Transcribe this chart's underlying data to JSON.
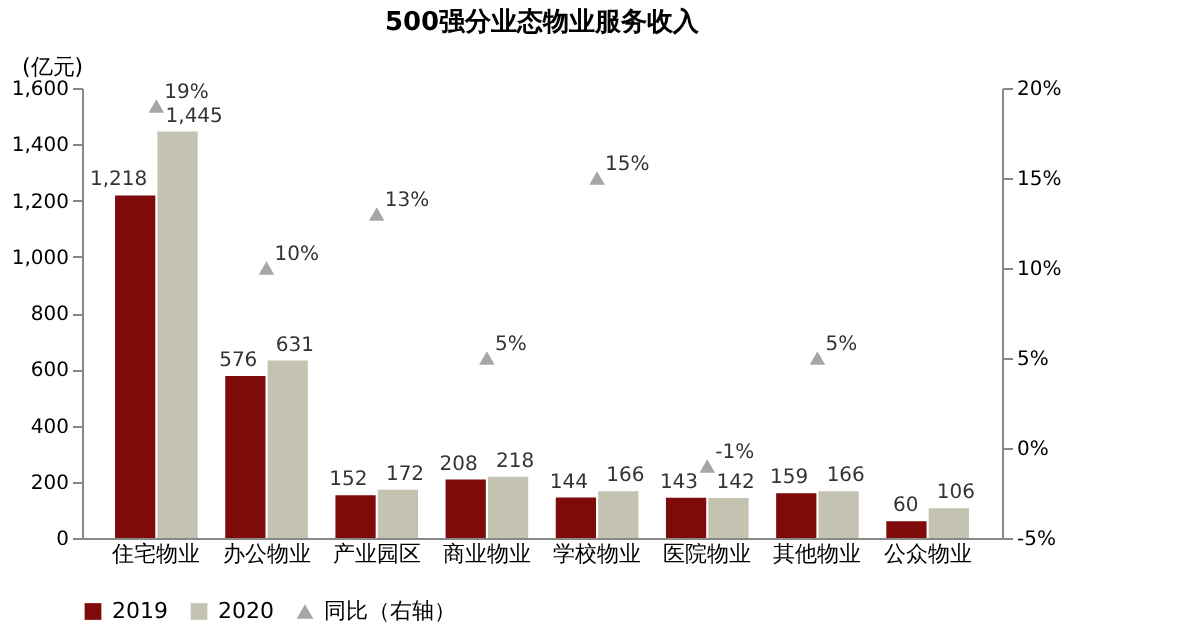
{
  "chart_data": {
    "type": "bar",
    "title": "500强分业态物业服务收入",
    "ylabel": "(亿元)",
    "categories": [
      "住宅物业",
      "办公物业",
      "产业园区",
      "商业物业",
      "学校物业",
      "医院物业",
      "其他物业",
      "公众物业"
    ],
    "series": [
      {
        "name": "2019",
        "color": "#7f0a0a",
        "values": [
          1218,
          576,
          152,
          208,
          144,
          143,
          159,
          60
        ],
        "value_labels": [
          "1,218",
          "576",
          "152",
          "208",
          "144",
          "143",
          "159",
          "60"
        ]
      },
      {
        "name": "2020",
        "color": "#c4c3b2",
        "values": [
          1445,
          631,
          172,
          218,
          166,
          142,
          166,
          106
        ],
        "value_labels": [
          "1,445",
          "631",
          "172",
          "218",
          "166",
          "142",
          "166",
          "106"
        ]
      },
      {
        "name": "同比（右轴）",
        "type": "scatter",
        "axis": "y2",
        "marker": "triangle",
        "color": "#a6a6a6",
        "values": [
          19,
          10,
          13,
          5,
          15,
          -1,
          5,
          null
        ],
        "value_labels": [
          "19%",
          "10%",
          "13%",
          "5%",
          "15%",
          "-1%",
          "5%",
          null
        ]
      }
    ],
    "ylim": [
      0,
      1600
    ],
    "yticks": [
      0,
      200,
      400,
      600,
      800,
      {
        "value": 1000,
        "label": "1,000"
      },
      {
        "value": 1200,
        "label": "1,200"
      },
      {
        "value": 1400,
        "label": "1,400"
      },
      {
        "value": 1600,
        "label": "1,600"
      }
    ],
    "y2lim": [
      -5,
      20
    ],
    "y2ticks": [
      {
        "value": -5,
        "label": "-5%"
      },
      {
        "value": 0,
        "label": "0%"
      },
      {
        "value": 5,
        "label": "5%"
      },
      {
        "value": 10,
        "label": "10%"
      },
      {
        "value": 15,
        "label": "15%"
      },
      {
        "value": 20,
        "label": "20%"
      }
    ],
    "grid": false,
    "legend": "bottom"
  }
}
